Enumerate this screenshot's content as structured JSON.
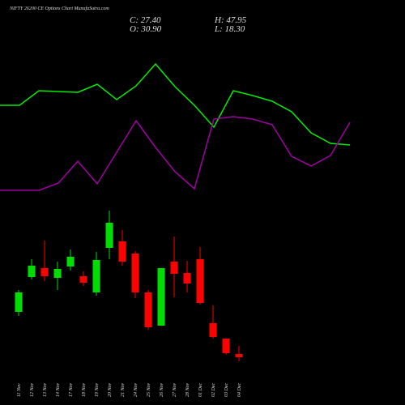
{
  "chart_data": [
    {
      "type": "candlestick",
      "title": "NIFTY 26200 CE Options Chart MunafaSutra.com",
      "annotations": [
        "C: 27.40",
        "H: 47.95",
        "O: 30.90",
        "L: 18.30"
      ],
      "categories": [
        "11 Nov",
        "12 Nov",
        "13 Nov",
        "14 Nov",
        "17 Nov",
        "18 Nov",
        "19 Nov",
        "20 Nov",
        "21 Nov",
        "24 Nov",
        "25 Nov",
        "26 Nov",
        "27 Nov",
        "28 Nov",
        "01 Dec",
        "02 Dec",
        "03 Dec",
        "04 Dec"
      ],
      "open": [
        115,
        158,
        169,
        157,
        171,
        159,
        139,
        194,
        202,
        187,
        139,
        98,
        177,
        163,
        180,
        101,
        82,
        63
      ],
      "high": [
        142,
        180,
        203,
        177,
        192,
        165,
        189,
        240,
        216,
        190,
        142,
        169,
        208,
        178,
        195,
        123,
        82,
        73
      ],
      "low": [
        110,
        155,
        153,
        142,
        166,
        147,
        135,
        180,
        172,
        132,
        93,
        98,
        133,
        139,
        124,
        82,
        62,
        54
      ],
      "close": [
        139,
        172,
        159,
        168,
        183,
        151,
        179,
        225,
        177,
        139,
        96,
        169,
        162,
        150,
        126,
        84,
        64,
        59
      ],
      "up_color": "#00dd00",
      "down_color": "#ff0000",
      "ylim": [
        0,
        500
      ]
    },
    {
      "type": "line",
      "series": [
        {
          "color": "#00ee00",
          "values": [
            170,
            170,
            188,
            187,
            186,
            196,
            177,
            194,
            221,
            193,
            170,
            143,
            188,
            182,
            175,
            162,
            136,
            123,
            121
          ]
        },
        {
          "color": "#a000a0",
          "values": [
            65,
            65,
            65,
            74,
            101,
            73,
            112,
            151,
            118,
            88,
            67,
            153,
            156,
            153,
            146,
            107,
            95,
            108,
            149
          ]
        }
      ],
      "ylim": [
        0,
        300
      ]
    }
  ]
}
